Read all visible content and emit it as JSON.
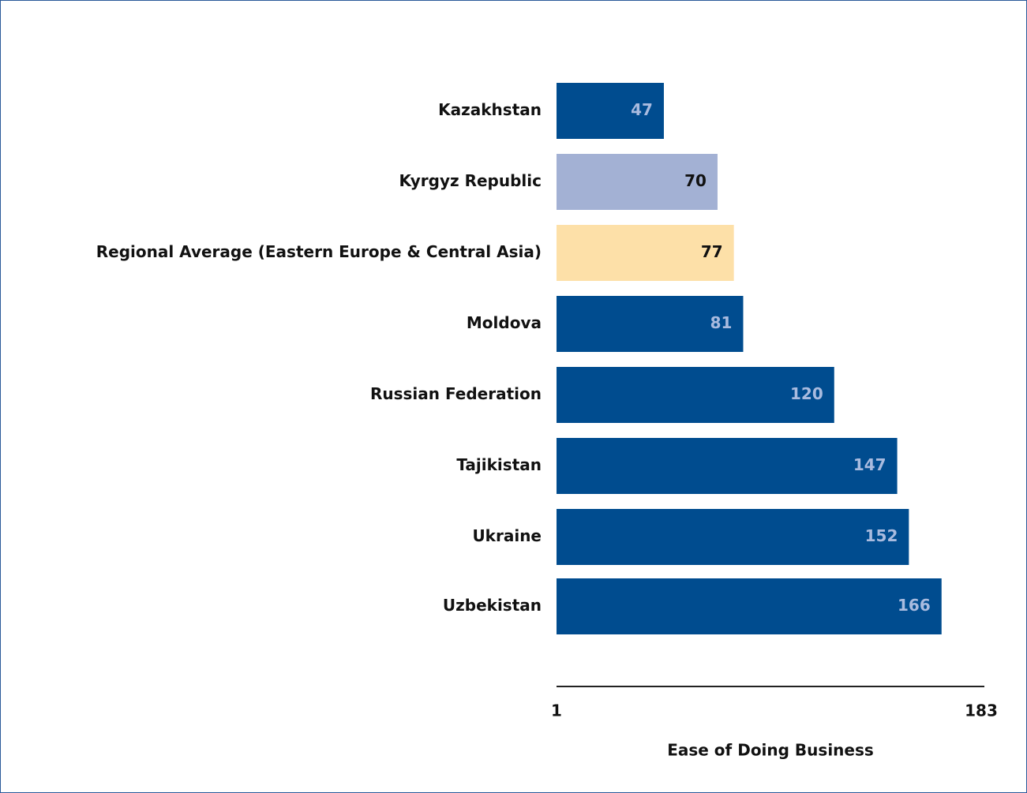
{
  "chart_data": {
    "type": "barh",
    "xlabel": "Ease of Doing Business",
    "categories": [
      "Kazakhstan",
      "Kyrgyz Republic",
      "Regional Average (Eastern Europe & Central Asia)",
      "Moldova",
      "Russian Federation",
      "Tajikistan",
      "Ukraine",
      "Uzbekistan"
    ],
    "values": [
      47,
      70,
      77,
      81,
      120,
      147,
      152,
      166
    ],
    "colors": [
      "#004c8f",
      "#a3b1d4",
      "#fde0a8",
      "#004c8f",
      "#004c8f",
      "#004c8f",
      "#004c8f",
      "#004c8f"
    ],
    "label_colors": [
      "#a9bbdf",
      "#111111",
      "#111111",
      "#a9bbdf",
      "#a9bbdf",
      "#a9bbdf",
      "#a9bbdf",
      "#a9bbdf"
    ],
    "xlim": [
      1,
      183
    ],
    "xticks": [
      1,
      183
    ]
  }
}
